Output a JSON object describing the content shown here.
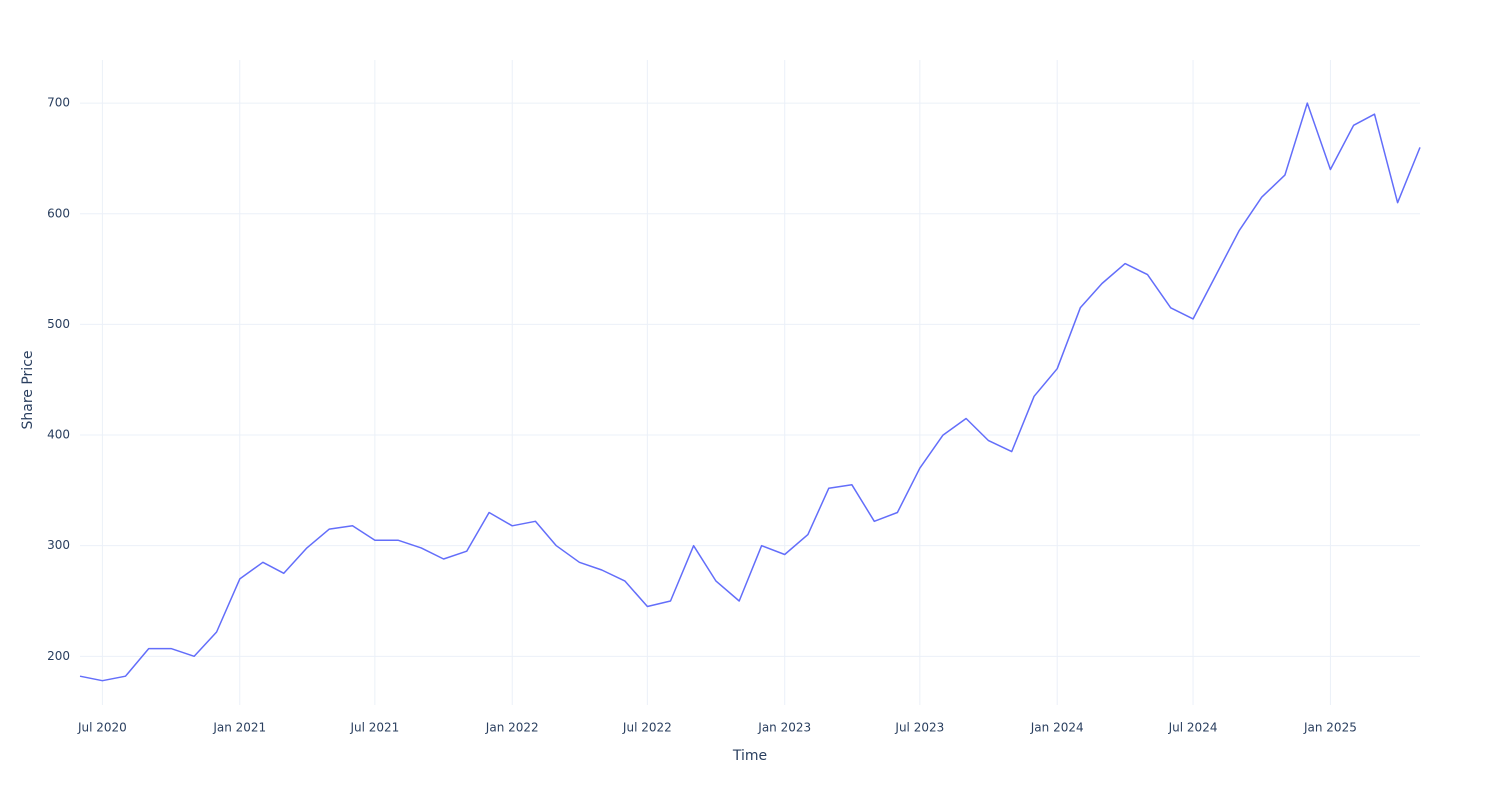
{
  "chart_data": {
    "type": "line",
    "x_label": "Time",
    "y_label": "Share Price",
    "x": [
      "2020-06",
      "2020-07",
      "2020-08",
      "2020-09",
      "2020-10",
      "2020-11",
      "2020-12",
      "2021-01",
      "2021-02",
      "2021-03",
      "2021-04",
      "2021-05",
      "2021-06",
      "2021-07",
      "2021-08",
      "2021-09",
      "2021-10",
      "2021-11",
      "2021-12",
      "2022-01",
      "2022-02",
      "2022-03",
      "2022-04",
      "2022-05",
      "2022-06",
      "2022-07",
      "2022-08",
      "2022-09",
      "2022-10",
      "2022-11",
      "2022-12",
      "2023-01",
      "2023-02",
      "2023-03",
      "2023-04",
      "2023-05",
      "2023-06",
      "2023-07",
      "2023-08",
      "2023-09",
      "2023-10",
      "2023-11",
      "2023-12",
      "2024-01",
      "2024-02",
      "2024-03",
      "2024-04",
      "2024-05",
      "2024-06",
      "2024-07",
      "2024-08",
      "2024-09",
      "2024-10",
      "2024-11",
      "2024-12",
      "2025-01",
      "2025-02",
      "2025-03",
      "2025-04",
      "2025-05"
    ],
    "series": [
      {
        "name": "Share Price",
        "color": "#636efa",
        "values": [
          182,
          178,
          182,
          207,
          207,
          200,
          222,
          270,
          285,
          275,
          298,
          315,
          318,
          305,
          305,
          298,
          288,
          295,
          330,
          318,
          322,
          300,
          285,
          278,
          268,
          245,
          250,
          300,
          268,
          250,
          300,
          292,
          310,
          352,
          355,
          322,
          330,
          370,
          400,
          415,
          395,
          385,
          435,
          460,
          515,
          537,
          555,
          545,
          515,
          505,
          545,
          585,
          615,
          635,
          700,
          640,
          680,
          690,
          610,
          660
        ]
      }
    ],
    "xlim": [
      "2020-06",
      "2025-05"
    ],
    "xticks": [
      {
        "value": "2020-07",
        "label": "Jul 2020"
      },
      {
        "value": "2021-01",
        "label": "Jan 2021"
      },
      {
        "value": "2021-07",
        "label": "Jul 2021"
      },
      {
        "value": "2022-01",
        "label": "Jan 2022"
      },
      {
        "value": "2022-07",
        "label": "Jul 2022"
      },
      {
        "value": "2023-01",
        "label": "Jan 2023"
      },
      {
        "value": "2023-07",
        "label": "Jul 2023"
      },
      {
        "value": "2024-01",
        "label": "Jan 2024"
      },
      {
        "value": "2024-07",
        "label": "Jul 2024"
      },
      {
        "value": "2025-01",
        "label": "Jan 2025"
      }
    ],
    "ylim": [
      156,
      739
    ],
    "yticks": [
      200,
      300,
      400,
      500,
      600,
      700
    ],
    "grid": true
  }
}
